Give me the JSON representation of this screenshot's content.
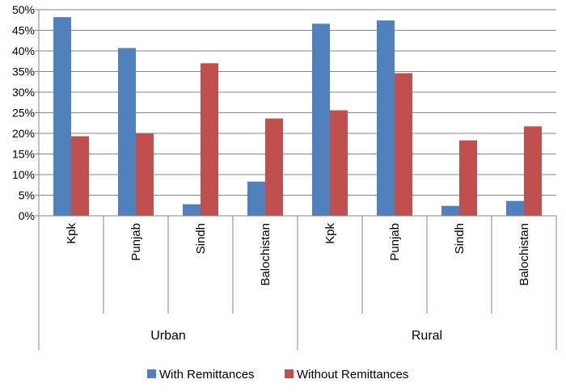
{
  "chart_data": {
    "type": "bar",
    "title": "",
    "xlabel": "",
    "ylabel": "",
    "ylim": [
      0,
      50
    ],
    "y_ticks": [
      "0%",
      "5%",
      "10%",
      "15%",
      "20%",
      "25%",
      "30%",
      "35%",
      "40%",
      "45%",
      "50%"
    ],
    "y_tick_values": [
      0,
      5,
      10,
      15,
      20,
      25,
      30,
      35,
      40,
      45,
      50
    ],
    "grid": true,
    "legend_position": "bottom",
    "groups": [
      {
        "label": "Urban",
        "categories": [
          "Kpk",
          "Punjab",
          "Sindh",
          "Balochistan"
        ]
      },
      {
        "label": "Rural",
        "categories": [
          "Kpk",
          "Punjab",
          "Sindh",
          "Balochistan"
        ]
      }
    ],
    "categories": [
      "Kpk",
      "Punjab",
      "Sindh",
      "Balochistan",
      "Kpk",
      "Punjab",
      "Sindh",
      "Balochistan"
    ],
    "series": [
      {
        "name": "With Remittances",
        "color": "#4f81bd",
        "values": [
          48.2,
          40.7,
          2.8,
          8.3,
          46.6,
          47.4,
          2.4,
          3.6
        ]
      },
      {
        "name": "Without Remittances",
        "color": "#c0504d",
        "values": [
          19.3,
          20.0,
          37.0,
          23.6,
          25.6,
          34.6,
          18.3,
          21.7
        ]
      }
    ]
  }
}
